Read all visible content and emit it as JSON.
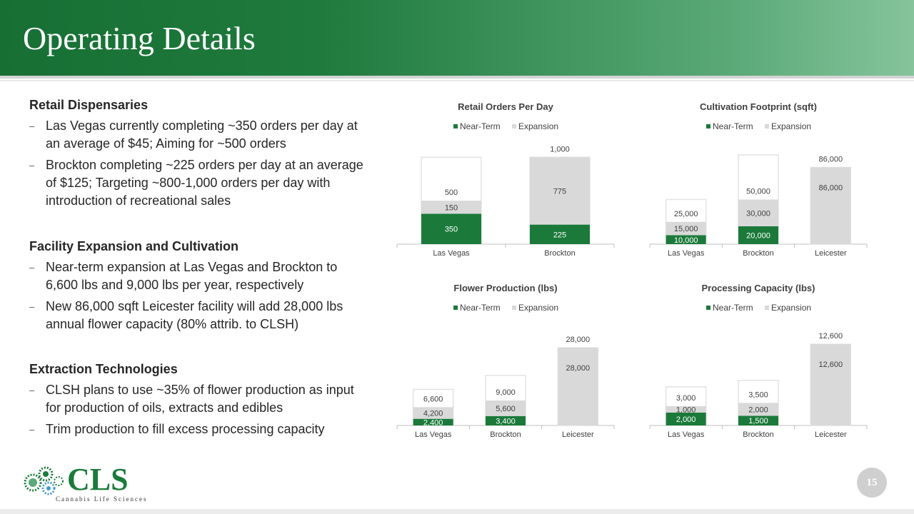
{
  "slide": {
    "title": "Operating Details",
    "page_number": "15",
    "logo_text": "CLS",
    "logo_subtitle": "Cannabis Life Sciences",
    "colors": {
      "header": "#1f7a3d",
      "near_term": "#1b7a3a",
      "expansion": "#d9d9d9"
    }
  },
  "sections": [
    {
      "heading": "Retail Dispensaries",
      "bullets": [
        "Las Vegas currently completing ~350 orders per day at an average of $45; Aiming for ~500 orders",
        "Brockton completing ~225 orders per day at an average of $125; Targeting ~800-1,000 orders per day with introduction of recreational sales"
      ]
    },
    {
      "heading": "Facility Expansion and Cultivation",
      "bullets": [
        "Near-term expansion at Las Vegas and Brockton to 6,600 lbs and 9,000 lbs per year, respectively",
        "New 86,000 sqft Leicester facility will add 28,000 lbs annual flower capacity (80% attrib. to CLSH)"
      ]
    },
    {
      "heading": "Extraction Technologies",
      "bullets": [
        "CLSH plans to use ~35% of flower production as input for production of oils, extracts and edibles",
        "Trim production to fill excess processing capacity"
      ]
    }
  ],
  "chart_data": [
    {
      "type": "bar",
      "stacked": true,
      "title": "Retail Orders Per Day",
      "legend": [
        "Near-Term",
        "Expansion"
      ],
      "legend_position": "top",
      "categories": [
        "Las Vegas",
        "Brockton"
      ],
      "series": [
        {
          "name": "Near-Term",
          "values": [
            350,
            225
          ],
          "labels": [
            "350",
            "225"
          ]
        },
        {
          "name": "Expansion",
          "values": [
            150,
            775
          ],
          "labels": [
            "150",
            "775"
          ]
        }
      ],
      "totals": [
        "500",
        "1,000"
      ],
      "capacity": [
        1000,
        1000
      ],
      "ylim": [
        0,
        1150
      ]
    },
    {
      "type": "bar",
      "stacked": true,
      "title": "Cultivation Footprint (sqft)",
      "legend": [
        "Near-Term",
        "Expansion"
      ],
      "legend_position": "top",
      "categories": [
        "Las Vegas",
        "Brockton",
        "Leicester"
      ],
      "series": [
        {
          "name": "Near-Term",
          "values": [
            10000,
            20000,
            0
          ],
          "labels": [
            "10,000",
            "20,000",
            ""
          ]
        },
        {
          "name": "Expansion",
          "values": [
            15000,
            30000,
            86000
          ],
          "labels": [
            "15,000",
            "30,000",
            "86,000"
          ]
        }
      ],
      "totals": [
        "25,000",
        "50,000",
        "86,000"
      ],
      "capacity": [
        50000,
        100000,
        86000
      ],
      "ylim": [
        0,
        112000
      ]
    },
    {
      "type": "bar",
      "stacked": true,
      "title": "Flower Production (lbs)",
      "legend": [
        "Near-Term",
        "Expansion"
      ],
      "legend_position": "top",
      "categories": [
        "Las Vegas",
        "Brockton",
        "Leicester"
      ],
      "series": [
        {
          "name": "Near-Term",
          "values": [
            2400,
            3400,
            0
          ],
          "labels": [
            "2,400",
            "3,400",
            ""
          ]
        },
        {
          "name": "Expansion",
          "values": [
            4200,
            5600,
            28000
          ],
          "labels": [
            "4,200",
            "5,600",
            "28,000"
          ]
        }
      ],
      "totals": [
        "6,600",
        "9,000",
        "28,000"
      ],
      "capacity": [
        13000,
        18000,
        28000
      ],
      "ylim": [
        0,
        36000
      ]
    },
    {
      "type": "bar",
      "stacked": true,
      "title": "Processing Capacity (lbs)",
      "legend": [
        "Near-Term",
        "Expansion"
      ],
      "legend_position": "top",
      "categories": [
        "Las Vegas",
        "Brockton",
        "Leicester"
      ],
      "series": [
        {
          "name": "Near-Term",
          "values": [
            2000,
            1500,
            0
          ],
          "labels": [
            "2,000",
            "1,500",
            ""
          ]
        },
        {
          "name": "Expansion",
          "values": [
            1000,
            2000,
            12600
          ],
          "labels": [
            "1,000",
            "2,000",
            "12,600"
          ]
        }
      ],
      "totals": [
        "3,000",
        "3,500",
        "12,600"
      ],
      "capacity": [
        6000,
        7000,
        12600
      ],
      "ylim": [
        0,
        15500
      ]
    }
  ]
}
